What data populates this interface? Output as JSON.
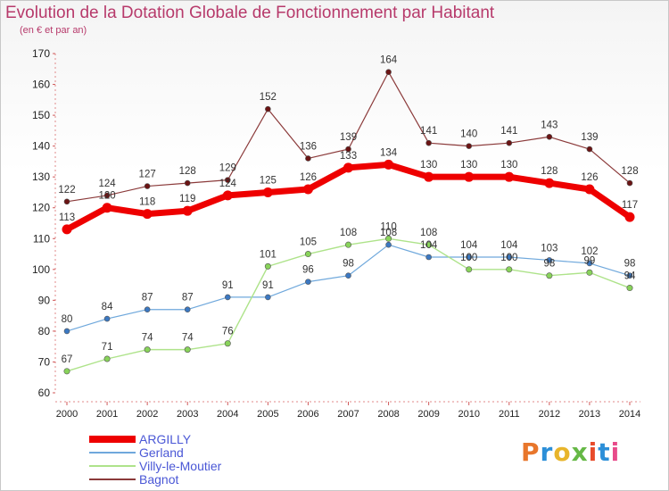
{
  "header": {
    "title": "Evolution de la Dotation Globale de Fonctionnement par Habitant",
    "subtitle": "(en € et par an)"
  },
  "logo": {
    "text": "Proxiti",
    "colors": [
      "#e8762b",
      "#2c8fd8",
      "#e8b52b",
      "#66b846",
      "#e84b2b",
      "#2c8fd8",
      "#e84b8a"
    ]
  },
  "chart_data": {
    "type": "line",
    "title": "Evolution de la Dotation Globale de Fonctionnement par Habitant",
    "subtitle": "(en € et par an)",
    "x": [
      "2000",
      "2001",
      "2002",
      "2003",
      "2004",
      "2005",
      "2006",
      "2007",
      "2008",
      "2009",
      "2010",
      "2011",
      "2012",
      "2013",
      "2014"
    ],
    "ylim": [
      60,
      170
    ],
    "yticks": [
      60,
      70,
      80,
      90,
      100,
      110,
      120,
      130,
      140,
      150,
      160,
      170
    ],
    "grid": false,
    "legend_position": "bottom-left",
    "series": [
      {
        "name": "ARGILLY",
        "color": "#ee0000",
        "values": [
          113,
          120,
          118,
          119,
          124,
          125,
          126,
          133,
          134,
          130,
          130,
          130,
          128,
          126,
          117
        ]
      },
      {
        "name": "Gerland",
        "color": "#5b9bd5",
        "values": [
          80,
          84,
          87,
          87,
          91,
          91,
          96,
          98,
          108,
          104,
          104,
          104,
          103,
          102,
          98
        ]
      },
      {
        "name": "Villy-le-Moutier",
        "color": "#99dd66",
        "values": [
          67,
          71,
          74,
          74,
          76,
          101,
          105,
          108,
          110,
          108,
          100,
          100,
          98,
          99,
          94
        ]
      },
      {
        "name": "Bagnot",
        "color": "#7a2020",
        "values": [
          122,
          124,
          127,
          128,
          129,
          152,
          136,
          139,
          164,
          141,
          140,
          141,
          143,
          139,
          128
        ]
      }
    ]
  }
}
